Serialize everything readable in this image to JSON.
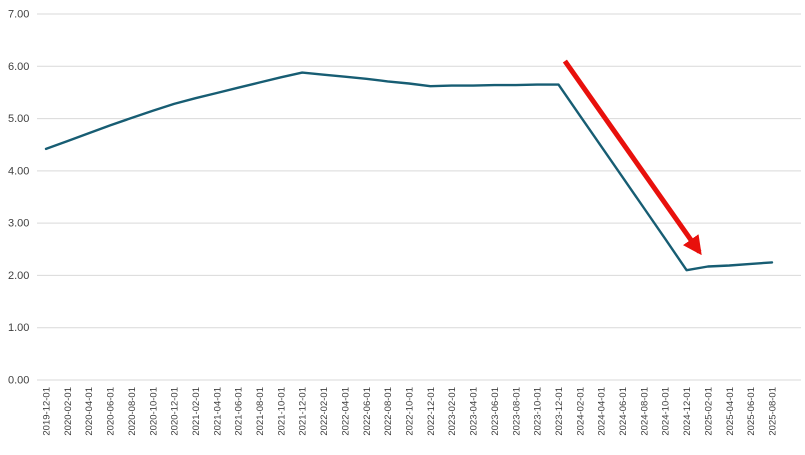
{
  "chart_data": {
    "type": "line",
    "title": "",
    "xlabel": "",
    "ylabel": "",
    "ylim": [
      0,
      7
    ],
    "y_ticks": [
      0,
      1,
      2,
      3,
      4,
      5,
      6,
      7
    ],
    "grid": "horizontal",
    "legend": "none",
    "x_label_rotation": -90,
    "x": [
      "2019-12-01",
      "2020-02-01",
      "2020-04-01",
      "2020-06-01",
      "2020-08-01",
      "2020-10-01",
      "2020-12-01",
      "2021-02-01",
      "2021-04-01",
      "2021-06-01",
      "2021-08-01",
      "2021-10-01",
      "2021-12-01",
      "2022-02-01",
      "2022-04-01",
      "2022-06-01",
      "2022-08-01",
      "2022-10-01",
      "2022-12-01",
      "2023-02-01",
      "2023-04-01",
      "2023-06-01",
      "2023-08-01",
      "2023-10-01",
      "2023-12-01",
      "2024-02-01",
      "2024-04-01",
      "2024-06-01",
      "2024-08-01",
      "2024-10-01",
      "2024-12-01",
      "2025-02-01",
      "2025-04-01",
      "2025-06-01",
      "2025-08-01"
    ],
    "series": [
      {
        "name": "series-1",
        "color": "#175d73",
        "values": [
          4.42,
          4.57,
          4.72,
          4.87,
          5.01,
          5.15,
          5.28,
          5.39,
          5.49,
          5.59,
          5.69,
          5.79,
          5.88,
          5.84,
          5.8,
          5.76,
          5.71,
          5.67,
          5.62,
          5.63,
          5.63,
          5.64,
          5.64,
          5.65,
          5.65,
          5.06,
          4.47,
          3.88,
          3.29,
          2.7,
          2.1,
          2.17,
          2.19,
          2.22,
          2.25
        ]
      }
    ],
    "annotations": [
      {
        "type": "arrow",
        "color": "#e8100c",
        "stroke_width": 5,
        "from": {
          "index": 24.3,
          "value": 6.1
        },
        "to": {
          "index": 30.6,
          "value": 2.45
        }
      }
    ]
  },
  "colors": {
    "background": "#ffffff",
    "line": "#175d73",
    "grid": "#d9d9d9",
    "axis_text": "#3f3f3f",
    "arrow": "#e8100c"
  },
  "axes": {
    "y_tick_label_format": "two-decimal",
    "y_tick_labels": [
      "0.00",
      "1.00",
      "2.00",
      "3.00",
      "4.00",
      "5.00",
      "6.00",
      "7.00"
    ]
  }
}
